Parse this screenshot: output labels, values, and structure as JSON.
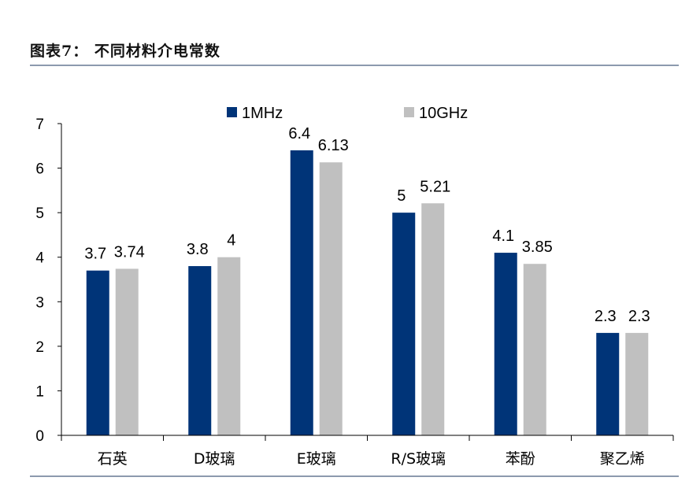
{
  "header": {
    "title": "图表7：  不同材料介电常数"
  },
  "colors": {
    "series_1": "#003478",
    "series_2": "#c0c0c0",
    "rule": "#8c9aae",
    "axis": "#000000"
  },
  "chart_data": {
    "type": "bar",
    "title": "",
    "xlabel": "",
    "ylabel": "",
    "ylim": [
      0,
      7
    ],
    "yticks": [
      0,
      1,
      2,
      3,
      4,
      5,
      6,
      7
    ],
    "grid": false,
    "legend_position": "top",
    "categories": [
      "石英",
      "D玻璃",
      "E玻璃",
      "R/S玻璃",
      "苯酚",
      "聚乙烯"
    ],
    "series": [
      {
        "name": "1MHz",
        "values": [
          3.7,
          3.8,
          6.4,
          5,
          4.1,
          2.3
        ],
        "labels": [
          "3.7",
          "3.8",
          "6.4",
          "5",
          "4.1",
          "2.3"
        ]
      },
      {
        "name": "10GHz",
        "values": [
          3.74,
          4,
          6.13,
          5.21,
          3.85,
          2.3
        ],
        "labels": [
          "3.74",
          "4",
          "6.13",
          "5.21",
          "3.85",
          "2.3"
        ]
      }
    ]
  }
}
